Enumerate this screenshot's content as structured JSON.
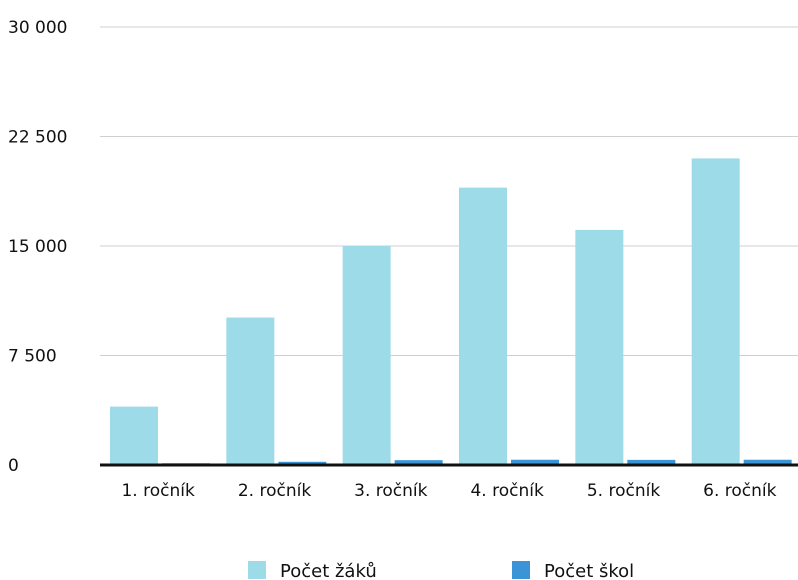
{
  "chart_data": {
    "type": "bar",
    "categories": [
      "1. ročník",
      "2. ročník",
      "3. ročník",
      "4. ročník",
      "5. ročník",
      "6. ročník"
    ],
    "series": [
      {
        "name": "Počet žáků",
        "color": "#9ddbe8",
        "values": [
          4000,
          10100,
          15000,
          19000,
          16100,
          21000
        ]
      },
      {
        "name": "Počet škol",
        "color": "#3a94d6",
        "values": [
          120,
          220,
          330,
          360,
          350,
          360
        ]
      }
    ],
    "yticks": [
      "0",
      "7 500",
      "15 000",
      "22 500",
      "30 000"
    ],
    "ylim": [
      0,
      30000
    ],
    "grid": true,
    "legend_position": "bottom"
  }
}
